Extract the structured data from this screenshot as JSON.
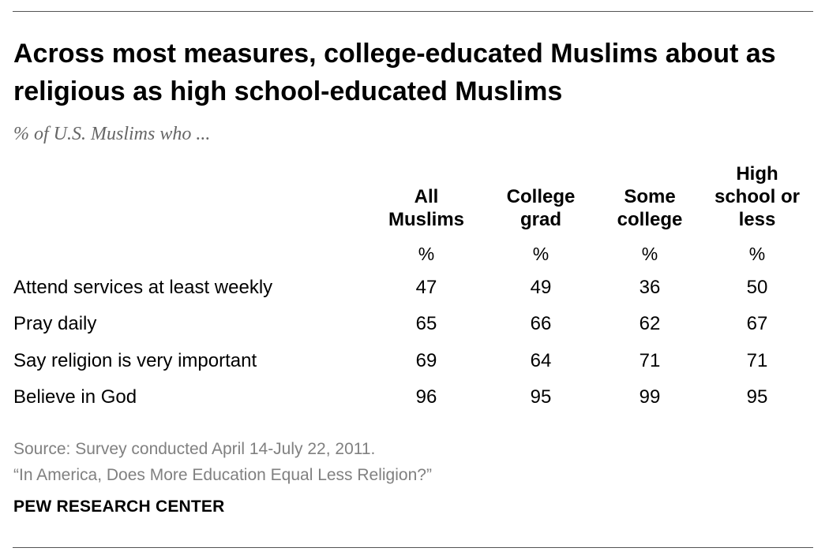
{
  "chart_data": {
    "type": "table",
    "title": "Across most measures, college-educated Muslims about as religious as high school-educated Muslims",
    "subtitle": "% of U.S. Muslims who ...",
    "columns": [
      {
        "lines": [
          "All",
          "Muslims"
        ],
        "unit": "%"
      },
      {
        "lines": [
          "College",
          "grad"
        ],
        "unit": "%"
      },
      {
        "lines": [
          "Some",
          "college"
        ],
        "unit": "%"
      },
      {
        "lines": [
          "High",
          "school or",
          "less"
        ],
        "unit": "%"
      }
    ],
    "rows": [
      {
        "label": "Attend services at least weekly",
        "values": [
          47,
          49,
          36,
          50
        ]
      },
      {
        "label": "Pray daily",
        "values": [
          65,
          66,
          62,
          67
        ]
      },
      {
        "label": "Say religion is very important",
        "values": [
          69,
          64,
          71,
          71
        ]
      },
      {
        "label": "Believe in God",
        "values": [
          96,
          95,
          99,
          95
        ]
      }
    ]
  },
  "source": {
    "line1": "Source: Survey conducted April 14-July 22, 2011.",
    "line2": "“In America, Does More Education Equal Less Religion?”"
  },
  "branding": "PEW RESEARCH CENTER"
}
